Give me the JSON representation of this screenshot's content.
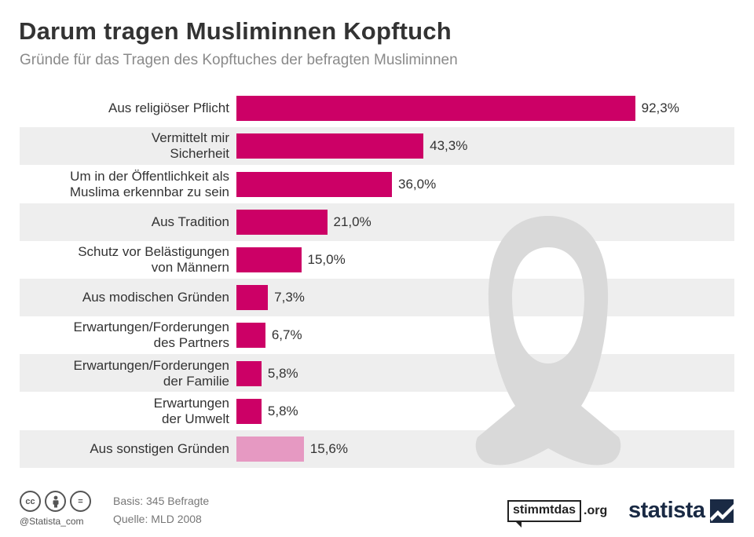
{
  "header": {
    "title": "Darum tragen Musliminnen Kopftuch",
    "subtitle": "Gründe für das Tragen des Kopftuches der befragten Musliminnen"
  },
  "chart_data": {
    "type": "bar",
    "orientation": "horizontal",
    "title": "Darum tragen Musliminnen Kopftuch",
    "subtitle": "Gründe für das Tragen des Kopftuches der befragten Musliminnen",
    "xlim": [
      0,
      100
    ],
    "grid": false,
    "unit": "%",
    "items": [
      {
        "lines": [
          "Aus religiöser Pflicht"
        ],
        "value": 92.3,
        "label": "92,3%"
      },
      {
        "lines": [
          "Vermittelt mir",
          "Sicherheit"
        ],
        "value": 43.3,
        "label": "43,3%"
      },
      {
        "lines": [
          "Um in der Öffentlichkeit als",
          "Muslima erkennbar zu sein"
        ],
        "value": 36.0,
        "label": "36,0%"
      },
      {
        "lines": [
          "Aus Tradition"
        ],
        "value": 21.0,
        "label": "21,0%"
      },
      {
        "lines": [
          "Schutz vor Belästigungen",
          "von Männern"
        ],
        "value": 15.0,
        "label": "15,0%"
      },
      {
        "lines": [
          "Aus modischen Gründen"
        ],
        "value": 7.3,
        "label": "7,3%"
      },
      {
        "lines": [
          "Erwartungen/Forderungen",
          "des Partners"
        ],
        "value": 6.7,
        "label": "6,7%"
      },
      {
        "lines": [
          "Erwartungen/Forderungen",
          "der Familie"
        ],
        "value": 5.8,
        "label": "5,8%"
      },
      {
        "lines": [
          "Erwartungen",
          "der Umwelt"
        ],
        "value": 5.8,
        "label": "5,8%"
      },
      {
        "lines": [
          "Aus sonstigen Gründen"
        ],
        "value": 15.6,
        "label": "15,6%",
        "highlight": "light"
      }
    ]
  },
  "colors": {
    "bar": "#cc0066",
    "bar_light": "#e699c2",
    "row_alt": "#eeeeee",
    "watermark": "#d9d9d9"
  },
  "footer": {
    "cc_icons": [
      "cc",
      "by",
      "="
    ],
    "handle": "@Statista_com",
    "basis": "Basis: 345 Befragte",
    "source": "Quelle: MLD 2008",
    "partner_box": "stimmtdas",
    "partner_suffix": ".org",
    "brand": "statista"
  }
}
